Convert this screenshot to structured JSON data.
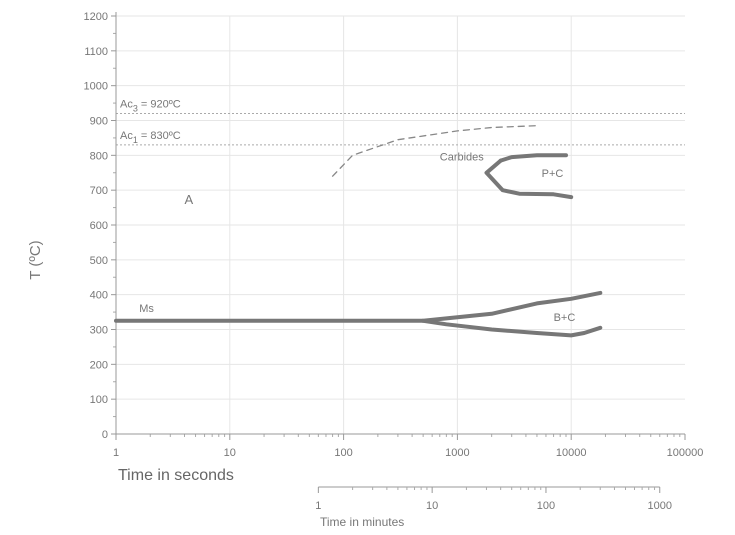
{
  "chart_data": {
    "type": "line",
    "title": "",
    "ylabel": "T (ºC)",
    "xlabel": "Time in seconds",
    "x_scale": "log",
    "xlim": [
      1,
      100000
    ],
    "ylim": [
      0,
      1200
    ],
    "x_ticks": [
      1,
      10,
      100,
      1000,
      10000,
      100000
    ],
    "x_tick_labels": [
      "1",
      "10",
      "100",
      "1000",
      "10000",
      "100000"
    ],
    "y_ticks": [
      0,
      100,
      200,
      300,
      400,
      500,
      600,
      700,
      800,
      900,
      1000,
      1100,
      1200
    ],
    "y_tick_labels": [
      "0",
      "100",
      "200",
      "300",
      "400",
      "500",
      "600",
      "700",
      "800",
      "900",
      "1000",
      "1100",
      "1200"
    ],
    "grid": true,
    "secondary_axis": {
      "label": "Time in minutes",
      "ticks_minutes": [
        1,
        10,
        100,
        1000
      ],
      "tick_labels": [
        "1",
        "10",
        "100",
        "1000"
      ]
    },
    "reference_lines": [
      {
        "label_base": "Ac",
        "label_sub": "3",
        "label_rest": " = 920ºC",
        "y": 920,
        "style": "dotted"
      },
      {
        "label_base": "Ac",
        "label_sub": "1",
        "label_rest": " = 830ºC",
        "y": 830,
        "style": "dotted"
      }
    ],
    "series": [
      {
        "style": "solid-thick",
        "points": [
          [
            1,
            325
          ],
          [
            500,
            325
          ],
          [
            800,
            332
          ],
          [
            2000,
            345
          ],
          [
            5000,
            375
          ],
          [
            10000,
            388
          ],
          [
            18000,
            405
          ]
        ]
      },
      {
        "style": "solid-thick",
        "points": [
          [
            500,
            325
          ],
          [
            800,
            315
          ],
          [
            2000,
            300
          ],
          [
            5000,
            290
          ],
          [
            10000,
            283
          ],
          [
            13000,
            290
          ],
          [
            18000,
            305
          ]
        ]
      },
      {
        "style": "solid-thick",
        "points": [
          [
            2400,
            785
          ],
          [
            3000,
            795
          ],
          [
            5000,
            800
          ],
          [
            9000,
            800
          ]
        ]
      },
      {
        "style": "solid-thick",
        "points": [
          [
            2400,
            785
          ],
          [
            1800,
            750
          ],
          [
            2500,
            700
          ],
          [
            3500,
            690
          ],
          [
            7000,
            688
          ],
          [
            10000,
            680
          ]
        ]
      },
      {
        "style": "dashed",
        "points": [
          [
            80,
            740
          ],
          [
            120,
            800
          ],
          [
            300,
            845
          ],
          [
            1000,
            870
          ],
          [
            2000,
            880
          ],
          [
            5000,
            885
          ]
        ]
      }
    ],
    "annotations": [
      {
        "text": "Carbides",
        "x": 700,
        "y": 785
      },
      {
        "text": "P+C",
        "x": 5500,
        "y": 738
      },
      {
        "text": "A",
        "x": 4,
        "y": 660
      },
      {
        "text": "Ms",
        "x": 1.6,
        "y": 350
      },
      {
        "text": "B+C",
        "x": 7000,
        "y": 325
      }
    ]
  }
}
